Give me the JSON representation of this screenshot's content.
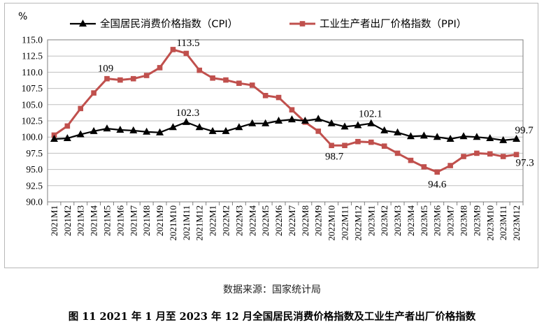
{
  "chart_data": {
    "type": "line",
    "unit": "%",
    "categories": [
      "2021M1",
      "2021M2",
      "2021M3",
      "2021M4",
      "2021M5",
      "2021M6",
      "2021M7",
      "2021M8",
      "2021M9",
      "2021M10",
      "2021M11",
      "2021M12",
      "2022M1",
      "2022M2",
      "2022M3",
      "2022M4",
      "2022M5",
      "2022M6",
      "2022M7",
      "2022M8",
      "2022M9",
      "2022M10",
      "2022M11",
      "2022M12",
      "2023M1",
      "2023M2",
      "2023M3",
      "2023M4",
      "2023M5",
      "2023M6",
      "2023M7",
      "2023M8",
      "2023M9",
      "2023M10",
      "2023M11",
      "2023M12"
    ],
    "ylim": [
      90.0,
      115.0
    ],
    "yticks": [
      "90.0",
      "92.5",
      "95.0",
      "97.5",
      "100.0",
      "102.5",
      "105.0",
      "107.5",
      "110.0",
      "112.5",
      "115.0"
    ],
    "grid": true,
    "legend_position": "top",
    "series": [
      {
        "name": "全国居民消费价格指数（CPI）",
        "color": "#000000",
        "marker": "triangle",
        "values": [
          99.7,
          99.8,
          100.4,
          100.9,
          101.3,
          101.1,
          101.0,
          100.8,
          100.7,
          101.5,
          102.3,
          101.5,
          100.9,
          100.9,
          101.5,
          102.1,
          102.1,
          102.5,
          102.7,
          102.5,
          102.8,
          102.1,
          101.6,
          101.8,
          102.1,
          101.0,
          100.7,
          100.1,
          100.2,
          100.0,
          99.7,
          100.1,
          100.0,
          99.8,
          99.5,
          99.7
        ],
        "labels": [
          {
            "index": 10,
            "text": "102.3"
          },
          {
            "index": 24,
            "text": "102.1"
          },
          {
            "index": 35,
            "text": "99.7"
          }
        ]
      },
      {
        "name": "工业生产者出厂价格指数（PPI）",
        "color": "#c0504d",
        "marker": "square",
        "values": [
          100.3,
          101.7,
          104.4,
          106.8,
          109.0,
          108.8,
          109.0,
          109.5,
          110.7,
          113.5,
          112.9,
          110.3,
          109.1,
          108.8,
          108.3,
          108.0,
          106.4,
          106.1,
          104.2,
          102.3,
          100.9,
          98.7,
          98.7,
          99.3,
          99.2,
          98.6,
          97.5,
          96.4,
          95.4,
          94.6,
          95.6,
          97.0,
          97.5,
          97.4,
          97.0,
          97.3
        ],
        "labels": [
          {
            "index": 4,
            "text": "109"
          },
          {
            "index": 9,
            "text": "113.5"
          },
          {
            "index": 21,
            "text": "98.7"
          },
          {
            "index": 29,
            "text": "94.6"
          },
          {
            "index": 35,
            "text": "97.3"
          }
        ]
      }
    ]
  },
  "source_text": "数据来源：国家统计局",
  "caption": "图 11  2021 年 1 月至 2023 年 12 月全国居民消费价格指数及工业生产者出厂价格指数"
}
